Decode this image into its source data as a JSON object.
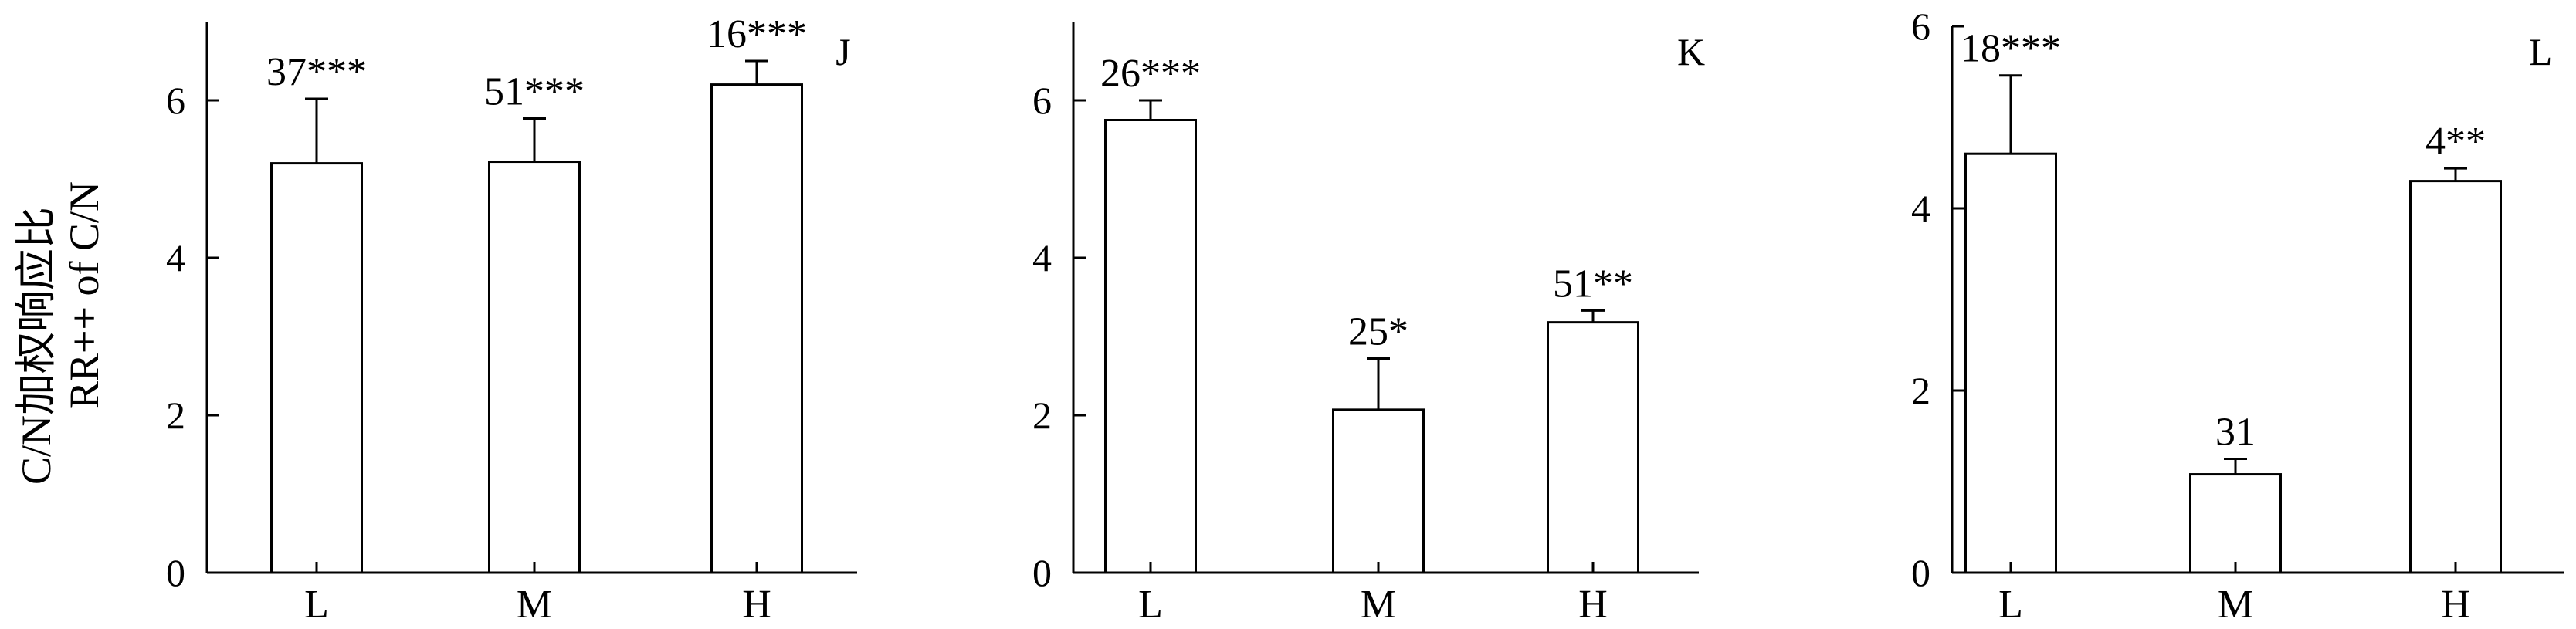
{
  "y_axis_title": {
    "line1": "C/N加权响应比",
    "line2": "RR++ of C/N"
  },
  "chart_data": [
    {
      "type": "bar",
      "panel_label": "J",
      "categories": [
        "L",
        "M",
        "H"
      ],
      "values": [
        5.2,
        5.22,
        6.2
      ],
      "errors": [
        0.82,
        0.55,
        0.3
      ],
      "bar_labels": [
        "37***",
        "51***",
        "16***"
      ],
      "ylim": [
        0,
        7
      ],
      "yticks": [
        0,
        2,
        4,
        6
      ]
    },
    {
      "type": "bar",
      "panel_label": "K",
      "categories": [
        "L",
        "M",
        "H"
      ],
      "values": [
        5.75,
        2.07,
        3.18
      ],
      "errors": [
        0.25,
        0.65,
        0.15
      ],
      "bar_labels": [
        "26***",
        "25*",
        "51**"
      ],
      "ylim": [
        0,
        7
      ],
      "yticks": [
        0,
        2,
        4,
        6
      ]
    },
    {
      "type": "bar",
      "panel_label": "L",
      "categories": [
        "L",
        "M",
        "H"
      ],
      "values": [
        4.6,
        1.08,
        4.3
      ],
      "errors": [
        0.86,
        0.17,
        0.14
      ],
      "bar_labels": [
        "18***",
        "31",
        "4**"
      ],
      "ylim": [
        0,
        6
      ],
      "yticks": [
        0,
        2,
        4,
        6
      ]
    }
  ]
}
